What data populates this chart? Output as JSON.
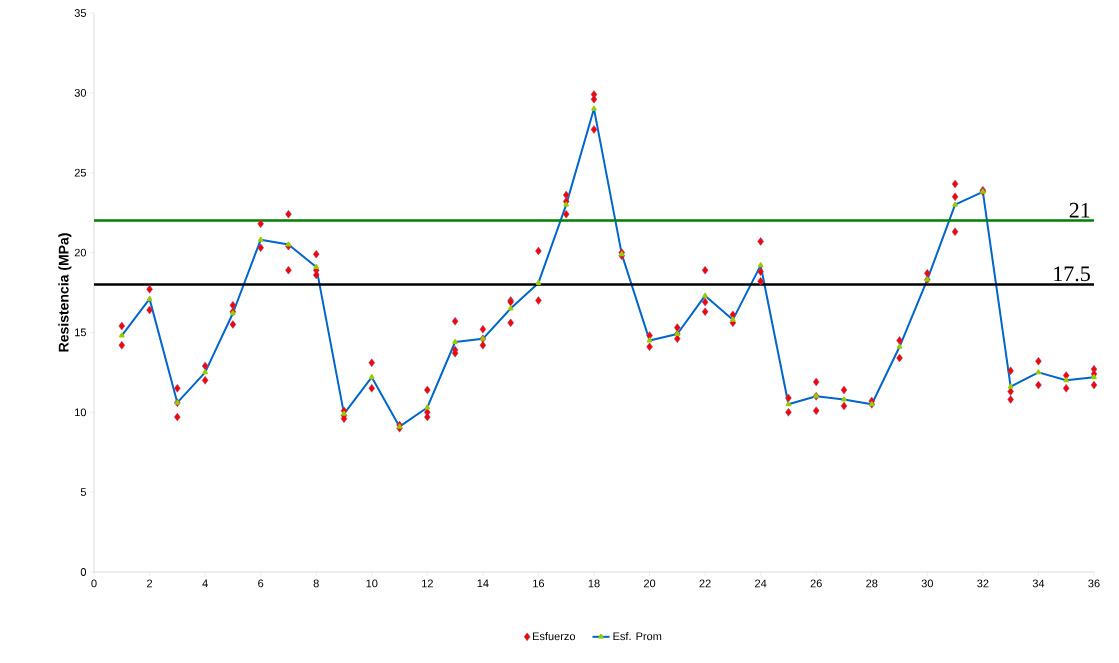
{
  "chart_data": {
    "type": "scatter",
    "ylabel": "Resistencia (MPa)",
    "xlim": [
      0,
      36
    ],
    "xticks": [
      0,
      2,
      4,
      6,
      8,
      10,
      12,
      14,
      16,
      18,
      20,
      22,
      24,
      26,
      28,
      30,
      32,
      34,
      36
    ],
    "ylim": [
      0,
      35
    ],
    "yticks": [
      0,
      5,
      10,
      15,
      20,
      25,
      30,
      35
    ],
    "grid": false,
    "legend": "bottom",
    "series": [
      {
        "name": "Esfuerzo",
        "marker": "diamond",
        "color": "#ff0000",
        "x": [
          1,
          1,
          2,
          2,
          3,
          3,
          3,
          4,
          4,
          5,
          5,
          5,
          6,
          6,
          7,
          7,
          7,
          8,
          8,
          8,
          9,
          9,
          9,
          10,
          10,
          11,
          11,
          12,
          12,
          12,
          13,
          13,
          13,
          14,
          14,
          14,
          15,
          15,
          15,
          16,
          16,
          17,
          17,
          17,
          18,
          18,
          18,
          19,
          19,
          20,
          20,
          21,
          21,
          21,
          22,
          22,
          22,
          23,
          23,
          24,
          24,
          24,
          25,
          25,
          26,
          26,
          26,
          27,
          27,
          28,
          28,
          29,
          29,
          30,
          30,
          31,
          31,
          31,
          32,
          32,
          33,
          33,
          33,
          34,
          34,
          35,
          35,
          36,
          36,
          36
        ],
        "values": [
          15.4,
          14.2,
          17.7,
          16.4,
          11.5,
          10.6,
          9.7,
          12.9,
          12.0,
          16.7,
          16.3,
          15.5,
          21.8,
          20.3,
          22.4,
          20.4,
          18.9,
          19.9,
          18.9,
          18.6,
          10.1,
          9.8,
          9.6,
          13.1,
          11.5,
          9.2,
          9.0,
          11.4,
          10.0,
          9.7,
          15.7,
          13.9,
          13.7,
          15.2,
          14.6,
          14.2,
          17.0,
          16.9,
          15.6,
          20.1,
          17.0,
          23.6,
          23.2,
          22.4,
          29.9,
          29.6,
          27.7,
          20.0,
          19.8,
          14.8,
          14.1,
          15.3,
          14.9,
          14.6,
          18.9,
          16.9,
          16.3,
          16.1,
          15.6,
          20.7,
          18.8,
          18.2,
          10.9,
          10.0,
          11.9,
          11.0,
          10.1,
          11.4,
          10.4,
          10.7,
          10.5,
          14.5,
          13.4,
          18.7,
          18.3,
          24.3,
          23.5,
          21.3,
          23.9,
          23.8,
          12.6,
          11.3,
          10.8,
          13.2,
          11.7,
          12.3,
          11.5,
          12.7,
          12.4,
          11.7
        ]
      },
      {
        "name": "Esf. Prom",
        "type": "line",
        "marker": "triangle",
        "line_style": "solid",
        "color": "#0066cc",
        "x": [
          1,
          2,
          3,
          4,
          5,
          6,
          7,
          8,
          9,
          10,
          11,
          12,
          13,
          14,
          15,
          16,
          17,
          18,
          19,
          20,
          21,
          22,
          23,
          24,
          25,
          26,
          27,
          28,
          29,
          30,
          31,
          32,
          33,
          34,
          35,
          36
        ],
        "values": [
          14.8,
          17.1,
          10.6,
          12.5,
          16.2,
          20.8,
          20.5,
          19.1,
          9.9,
          12.2,
          9.1,
          10.3,
          14.4,
          14.6,
          16.5,
          18.1,
          23.0,
          29.0,
          19.9,
          14.5,
          14.9,
          17.3,
          15.8,
          19.2,
          10.5,
          11.0,
          10.8,
          10.5,
          14.1,
          18.3,
          23.0,
          23.8,
          11.6,
          12.5,
          12.0,
          12.2
        ]
      }
    ],
    "ref_lines": [
      {
        "axis": "y",
        "value": 22,
        "color": "#008000",
        "line_style": "solid"
      },
      {
        "axis": "y",
        "value": 18,
        "color": "#000000",
        "line_style": "solid"
      }
    ],
    "annotations": [
      "21",
      "17.5"
    ]
  }
}
